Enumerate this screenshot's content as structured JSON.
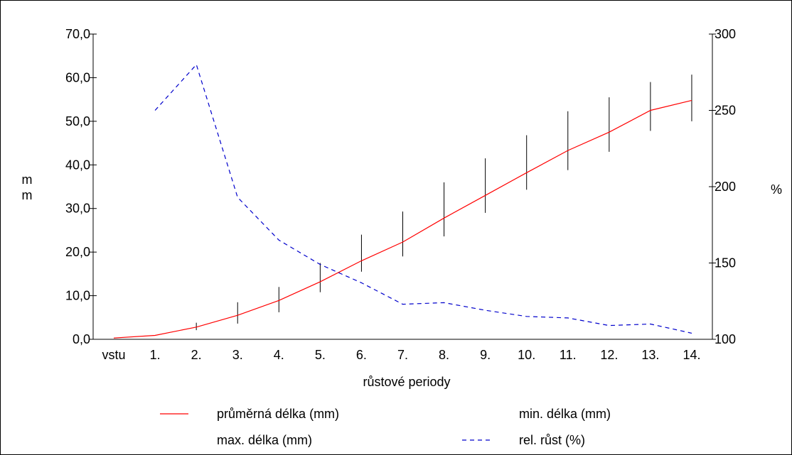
{
  "chart_data": {
    "type": "line",
    "title": "",
    "categories": [
      "vstu",
      "1.",
      "2.",
      "3.",
      "4.",
      "5.",
      "6.",
      "7.",
      "8.",
      "9.",
      "10.",
      "11.",
      "12.",
      "13.",
      "14."
    ],
    "xlabel": "růstové periody",
    "ylabel_left": "m\nm",
    "ylabel_right": "%",
    "ylim_left": [
      0,
      70
    ],
    "ylim_right": [
      100,
      300
    ],
    "yticks_left": [
      "0,0",
      "10,0",
      "20,0",
      "30,0",
      "40,0",
      "50,0",
      "60,0",
      "70,0"
    ],
    "yticks_right": [
      "100",
      "150",
      "200",
      "250",
      "300"
    ],
    "grid": false,
    "legend_position": "bottom",
    "series": [
      {
        "name": "průměrná délka (mm)",
        "axis": "left",
        "color": "#ff0000",
        "style": "solid",
        "values": [
          0.3,
          0.9,
          2.8,
          5.5,
          8.9,
          13.2,
          18.0,
          22.3,
          27.8,
          33.0,
          38.2,
          43.3,
          47.5,
          52.5,
          54.8
        ]
      },
      {
        "name": "min. délka (mm)",
        "axis": "left",
        "color": "#000000",
        "style": "errorbar-low",
        "values": [
          null,
          null,
          2.1,
          3.6,
          6.2,
          10.8,
          15.5,
          19.0,
          23.6,
          29.0,
          34.3,
          38.8,
          43.0,
          47.8,
          50.0
        ]
      },
      {
        "name": "max. délka (mm)",
        "axis": "left",
        "color": "#000000",
        "style": "errorbar-high",
        "values": [
          null,
          null,
          3.8,
          8.5,
          12.0,
          17.5,
          24.0,
          29.3,
          36.0,
          41.5,
          46.8,
          52.3,
          55.5,
          59.0,
          60.7
        ]
      },
      {
        "name": "rel. růst (%)",
        "axis": "right",
        "color": "#0000cc",
        "style": "dashed",
        "values": [
          null,
          250,
          280,
          193,
          165,
          149,
          137,
          123,
          124,
          119,
          115,
          114,
          109,
          110,
          104
        ]
      }
    ]
  }
}
